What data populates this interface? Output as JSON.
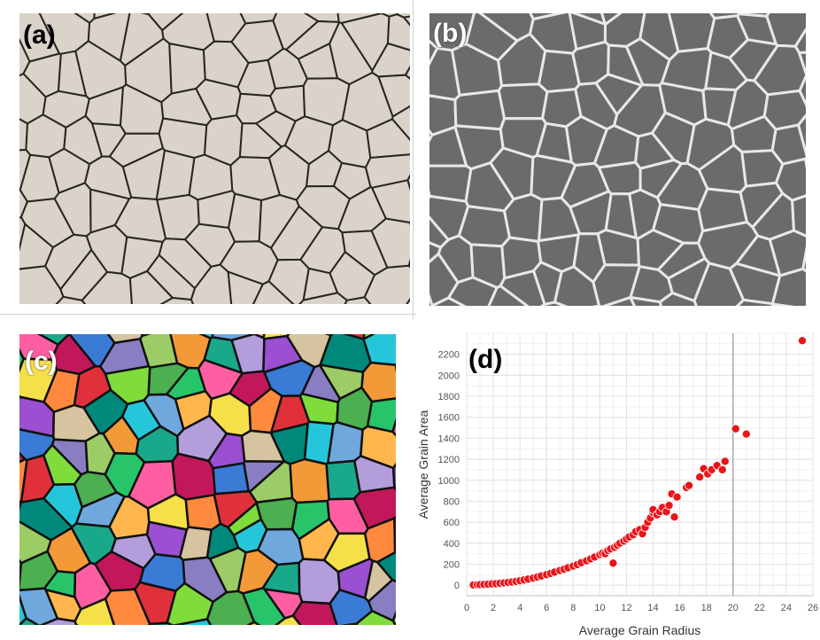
{
  "panels": {
    "a": {
      "label": "(a)"
    },
    "b": {
      "label": "(b)"
    },
    "c": {
      "label": "(c)"
    },
    "d": {
      "label": "(d)"
    }
  },
  "colors": {
    "micro_bg": "#d9d3c9",
    "micro_boundary": "#2a2520",
    "edge_bg": "#6b6b6b",
    "edge_line": "#e8e8e8",
    "point": "#e8161b",
    "point_stroke": "#ffffff",
    "grid": "#e3e3e3",
    "axis_text": "#555555"
  },
  "chart_data": {
    "type": "scatter",
    "title": "",
    "xlabel": "Average Grain Radius",
    "ylabel": "Average Grain Area",
    "xlim": [
      0,
      26
    ],
    "ylim": [
      -100,
      2400
    ],
    "xticks": [
      0,
      2,
      4,
      6,
      8,
      10,
      12,
      14,
      16,
      18,
      20,
      22,
      24,
      26
    ],
    "yticks": [
      0,
      200,
      400,
      600,
      800,
      1000,
      1200,
      1400,
      1600,
      1800,
      2000,
      2200
    ],
    "grid": true,
    "legend": "none",
    "reference_line_x": 20,
    "points": [
      [
        0.5,
        2
      ],
      [
        0.8,
        4
      ],
      [
        1.0,
        5
      ],
      [
        1.3,
        7
      ],
      [
        1.6,
        9
      ],
      [
        1.9,
        12
      ],
      [
        2.2,
        14
      ],
      [
        2.5,
        18
      ],
      [
        2.8,
        22
      ],
      [
        3.1,
        26
      ],
      [
        3.4,
        30
      ],
      [
        3.7,
        36
      ],
      [
        4.0,
        42
      ],
      [
        4.3,
        50
      ],
      [
        4.6,
        58
      ],
      [
        5.0,
        68
      ],
      [
        5.3,
        78
      ],
      [
        5.6,
        88
      ],
      [
        6.0,
        100
      ],
      [
        6.3,
        112
      ],
      [
        6.6,
        124
      ],
      [
        7.0,
        140
      ],
      [
        7.3,
        152
      ],
      [
        7.6,
        166
      ],
      [
        8.0,
        182
      ],
      [
        8.3,
        196
      ],
      [
        8.6,
        214
      ],
      [
        9.0,
        232
      ],
      [
        9.3,
        250
      ],
      [
        9.6,
        268
      ],
      [
        10.0,
        290
      ],
      [
        10.2,
        305
      ],
      [
        10.4,
        300
      ],
      [
        10.6,
        330
      ],
      [
        10.8,
        345
      ],
      [
        11.0,
        210
      ],
      [
        11.1,
        360
      ],
      [
        11.3,
        380
      ],
      [
        11.5,
        400
      ],
      [
        11.8,
        420
      ],
      [
        12.0,
        440
      ],
      [
        12.2,
        460
      ],
      [
        12.5,
        480
      ],
      [
        12.7,
        510
      ],
      [
        13.0,
        530
      ],
      [
        13.2,
        490
      ],
      [
        13.4,
        550
      ],
      [
        13.6,
        600
      ],
      [
        13.8,
        640
      ],
      [
        14.0,
        690
      ],
      [
        14.0,
        720
      ],
      [
        14.3,
        670
      ],
      [
        14.5,
        700
      ],
      [
        14.7,
        740
      ],
      [
        15.0,
        700
      ],
      [
        15.2,
        760
      ],
      [
        15.4,
        870
      ],
      [
        15.6,
        650
      ],
      [
        15.8,
        840
      ],
      [
        16.5,
        930
      ],
      [
        16.7,
        950
      ],
      [
        17.5,
        1030
      ],
      [
        17.8,
        1110
      ],
      [
        18.1,
        1060
      ],
      [
        18.4,
        1100
      ],
      [
        18.8,
        1140
      ],
      [
        19.2,
        1100
      ],
      [
        19.4,
        1180
      ],
      [
        20.2,
        1490
      ],
      [
        21.0,
        1440
      ],
      [
        25.2,
        2330
      ]
    ]
  }
}
